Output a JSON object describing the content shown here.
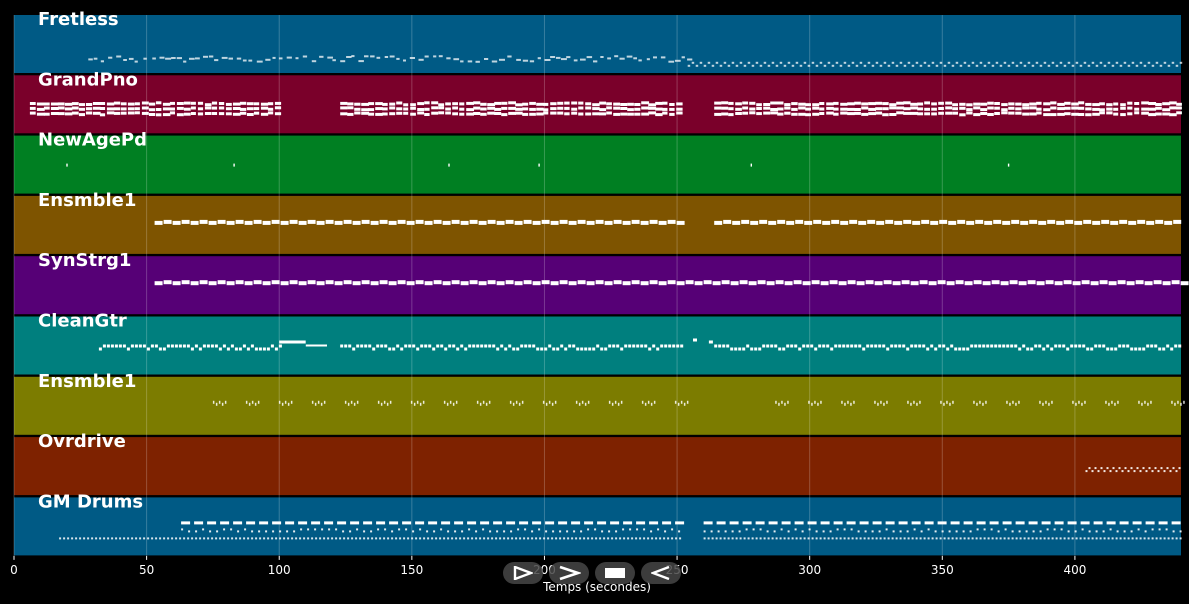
{
  "chart_data": {
    "type": "piano-roll",
    "xlabel": "Temps (secondes)",
    "xlim": [
      0,
      440
    ],
    "xticks": [
      0,
      50,
      100,
      150,
      200,
      250,
      300,
      350,
      400
    ],
    "grid": true,
    "tracks": [
      {
        "name": "Fretless",
        "color": "#005a85",
        "pattern": "bass",
        "segments": [
          [
            28,
            254
          ],
          [
            254,
            440
          ]
        ],
        "style": [
          "sparse",
          "dense-thin"
        ]
      },
      {
        "name": "GrandPno",
        "color": "#7a002a",
        "pattern": "chords",
        "segments": [
          [
            6,
            100
          ],
          [
            123,
            252
          ],
          [
            264,
            440
          ]
        ],
        "style": [
          "block",
          "block",
          "block"
        ]
      },
      {
        "name": "NewAgePd",
        "color": "#007f22",
        "pattern": "single",
        "points": [
          20,
          83,
          164,
          198,
          278,
          375
        ]
      },
      {
        "name": "Ensmble1",
        "color": "#7e5400",
        "pattern": "pad",
        "segments": [
          [
            53,
            252
          ],
          [
            264,
            440
          ]
        ],
        "style": [
          "bar",
          "bar"
        ]
      },
      {
        "name": "SynStrg1",
        "color": "#560076",
        "pattern": "pad",
        "segments": [
          [
            53,
            440
          ]
        ],
        "style": [
          "bar"
        ]
      },
      {
        "name": "CleanGtr",
        "color": "#007f7e",
        "pattern": "riff",
        "segments": [
          [
            32,
            100
          ],
          [
            123,
            252
          ],
          [
            264,
            440
          ]
        ],
        "style": [
          "riff",
          "riff",
          "riff"
        ]
      },
      {
        "name": "Ensmble1",
        "color": "#7c7c00",
        "pattern": "stabs",
        "segments": [
          [
            75,
            252
          ],
          [
            287,
            440
          ]
        ],
        "style": [
          "groups",
          "groups"
        ]
      },
      {
        "name": "Ovrdrive",
        "color": "#7e2200",
        "pattern": "solo",
        "segments": [
          [
            404,
            440
          ]
        ],
        "style": [
          "dense-thin"
        ]
      },
      {
        "name": "GM Drums",
        "color": "#005a85",
        "pattern": "drums",
        "segments": [
          [
            17,
            252
          ],
          [
            260,
            440
          ]
        ],
        "style": [
          "drums",
          "drums"
        ]
      }
    ]
  },
  "player": {
    "buttons": [
      {
        "name": "rewind",
        "icon": "rewind-icon"
      },
      {
        "name": "play",
        "icon": "play-icon"
      },
      {
        "name": "stop",
        "icon": "stop-icon"
      },
      {
        "name": "back",
        "icon": "back-icon"
      }
    ]
  }
}
